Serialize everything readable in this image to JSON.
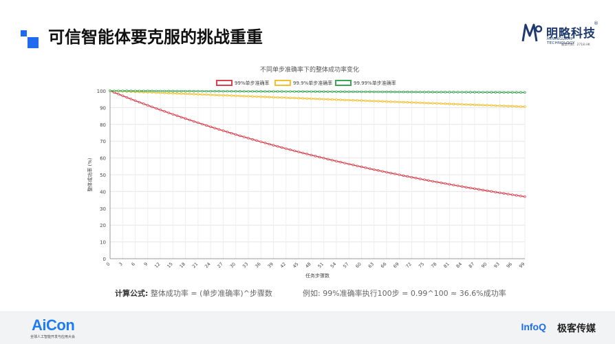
{
  "slide": {
    "title": "可信智能体要克服的挑战重重"
  },
  "brand": {
    "name": "明略科技",
    "reg": "®",
    "sub": "MININGLAMP TECHNOLOGY",
    "code": "股票代码：2718.HK"
  },
  "formula": {
    "label": "计算公式:",
    "text": " 整体成功率 = (单步准确率)^步骤数"
  },
  "example": {
    "text": "例如: 99%准确率执行100步 = 0.99^100 ≈ 36.6%成功率"
  },
  "footer": {
    "aicon": "AiCon",
    "aicon_sub": "全球人工智能开发与应用大会",
    "infoq": "InfoQ",
    "geek": "极客传媒"
  },
  "colors": {
    "accent": "#1e6bf0",
    "red": "#d9434f",
    "yellow": "#f3bf2a",
    "green": "#3aa655"
  },
  "chart_data": {
    "type": "line",
    "title": "不同单步准确率下的整体成功率变化",
    "xlabel": "任务步骤数",
    "ylabel": "整体成功率 (%)",
    "ylim": [
      0,
      100
    ],
    "yticks": [
      0,
      10,
      20,
      30,
      40,
      50,
      60,
      70,
      80,
      90,
      100
    ],
    "xticks": [
      0,
      3,
      6,
      9,
      12,
      15,
      18,
      21,
      24,
      27,
      30,
      33,
      36,
      39,
      42,
      45,
      48,
      51,
      54,
      57,
      60,
      63,
      66,
      69,
      72,
      75,
      78,
      81,
      84,
      87,
      90,
      93,
      96,
      99
    ],
    "xlim": [
      0,
      99
    ],
    "grid": true,
    "legend_position": "top",
    "series": [
      {
        "name": "99%单步准确率",
        "color": "#d9434f",
        "base": 0.99,
        "x_start": 0,
        "x_end": 99,
        "sample_values": {
          "0": 100,
          "50": 60.5,
          "99": 37.0
        }
      },
      {
        "name": "99.9%单步准确率",
        "color": "#f3bf2a",
        "base": 0.999,
        "x_start": 0,
        "x_end": 99,
        "sample_values": {
          "0": 100,
          "50": 95.1,
          "99": 90.6
        }
      },
      {
        "name": "99.99%单步准确率",
        "color": "#3aa655",
        "base": 0.9999,
        "x_start": 0,
        "x_end": 99,
        "sample_values": {
          "0": 100,
          "50": 99.5,
          "99": 99.0
        }
      }
    ]
  }
}
